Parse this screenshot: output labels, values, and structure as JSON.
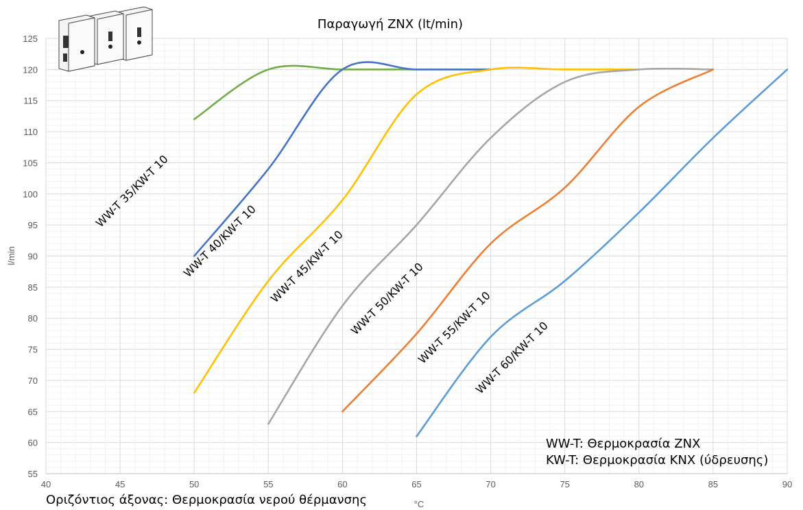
{
  "chart_data": {
    "type": "line",
    "title": "Παραγωγή ZNX (lt/min)",
    "xlabel": "°C",
    "ylabel": "l/min",
    "xlim": [
      40,
      90
    ],
    "ylim": [
      55,
      125
    ],
    "x_ticks": [
      40,
      45,
      50,
      55,
      60,
      65,
      70,
      75,
      80,
      85,
      90
    ],
    "y_ticks": [
      55,
      60,
      65,
      70,
      75,
      80,
      85,
      90,
      95,
      100,
      105,
      110,
      115,
      120,
      125
    ],
    "grid": true,
    "series": [
      {
        "name": "WW-T 35/KW-T 10",
        "color": "#70AD47",
        "x": [
          50,
          55,
          60,
          65,
          70
        ],
        "y": [
          112,
          120,
          120,
          120,
          120
        ]
      },
      {
        "name": "WW-T 40/KW-T 10",
        "color": "#4472C4",
        "x": [
          50,
          55,
          60,
          65,
          70
        ],
        "y": [
          90,
          104,
          120,
          120,
          120
        ]
      },
      {
        "name": "WW-T 45/KW-T 10",
        "color": "#FFC000",
        "x": [
          50,
          55,
          60,
          65,
          70,
          75,
          80
        ],
        "y": [
          68,
          86,
          99,
          116,
          120,
          120,
          120
        ]
      },
      {
        "name": "WW-T 50/KW-T 10",
        "color": "#A5A5A5",
        "x": [
          55,
          60,
          65,
          70,
          75,
          80,
          85
        ],
        "y": [
          63,
          82,
          95,
          109,
          118,
          120,
          120
        ]
      },
      {
        "name": "WW-T 55/KW-T 10",
        "color": "#ED7D31",
        "x": [
          60,
          65,
          70,
          75,
          80,
          85
        ],
        "y": [
          65,
          77.5,
          92,
          101,
          114,
          120
        ]
      },
      {
        "name": "WW-T 60/KW-T 10",
        "color": "#5B9BD5",
        "x": [
          65,
          70,
          75,
          80,
          85,
          90
        ],
        "y": [
          61,
          77,
          86,
          97,
          109,
          120
        ]
      }
    ],
    "annotations": [
      "WW-T: Θερμοκρασία ZNX",
      "KW-T: Θερμοκρασία KNX (ύδρευσης)",
      "Οριζόντιος άξονας: Θερμοκρασία νερού θέρμανσης"
    ]
  }
}
